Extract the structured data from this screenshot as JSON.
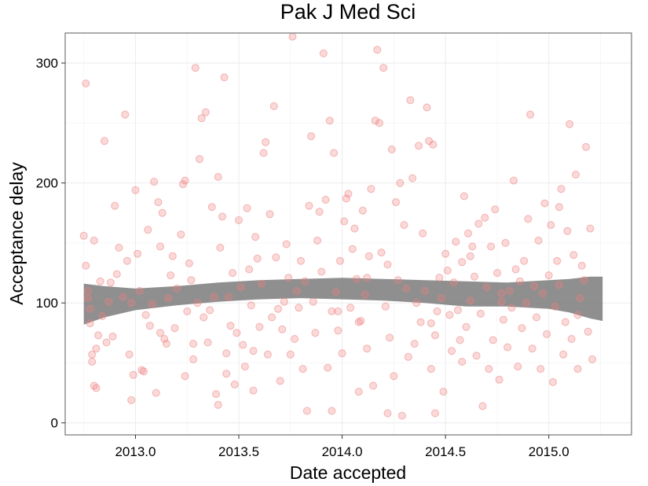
{
  "chart_data": {
    "type": "scatter",
    "title": "Pak J Med Sci",
    "xlabel": "Date accepted",
    "ylabel": "Acceptance delay",
    "xlim": [
      2012.66,
      2015.4
    ],
    "ylim": [
      -10,
      325
    ],
    "x_ticks": [
      "2013.0",
      "2013.5",
      "2014.0",
      "2014.5",
      "2015.0"
    ],
    "y_ticks": [
      "0",
      "100",
      "200",
      "300"
    ],
    "grid": true,
    "legend": "none",
    "point_color": "#f08080",
    "band_color": "#808080",
    "points": [
      [
        2012.75,
        156
      ],
      [
        2012.76,
        283
      ],
      [
        2012.76,
        131
      ],
      [
        2012.77,
        110
      ],
      [
        2012.77,
        104
      ],
      [
        2012.78,
        95
      ],
      [
        2012.78,
        83
      ],
      [
        2012.79,
        57
      ],
      [
        2012.79,
        51
      ],
      [
        2012.8,
        31
      ],
      [
        2012.8,
        152
      ],
      [
        2012.81,
        62
      ],
      [
        2012.81,
        29
      ],
      [
        2012.82,
        73
      ],
      [
        2012.83,
        118
      ],
      [
        2012.84,
        89
      ],
      [
        2012.85,
        235
      ],
      [
        2012.86,
        67
      ],
      [
        2012.87,
        101
      ],
      [
        2012.88,
        117
      ],
      [
        2012.89,
        72
      ],
      [
        2012.9,
        181
      ],
      [
        2012.91,
        124
      ],
      [
        2012.92,
        146
      ],
      [
        2012.94,
        105
      ],
      [
        2012.95,
        257
      ],
      [
        2012.96,
        135
      ],
      [
        2012.97,
        57
      ],
      [
        2012.98,
        19
      ],
      [
        2012.99,
        40
      ],
      [
        2013.0,
        194
      ],
      [
        2013.01,
        141
      ],
      [
        2013.02,
        110
      ],
      [
        2013.03,
        44
      ],
      [
        2013.04,
        43
      ],
      [
        2013.05,
        90
      ],
      [
        2013.06,
        161
      ],
      [
        2013.07,
        81
      ],
      [
        2013.08,
        99
      ],
      [
        2013.09,
        201
      ],
      [
        2013.1,
        25
      ],
      [
        2013.11,
        184
      ],
      [
        2013.12,
        147
      ],
      [
        2013.13,
        175
      ],
      [
        2013.14,
        70
      ],
      [
        2013.15,
        66
      ],
      [
        2013.16,
        104
      ],
      [
        2013.17,
        123
      ],
      [
        2013.18,
        139
      ],
      [
        2013.19,
        79
      ],
      [
        2013.2,
        112
      ],
      [
        2013.22,
        157
      ],
      [
        2013.23,
        199
      ],
      [
        2013.24,
        202
      ],
      [
        2013.24,
        39
      ],
      [
        2013.25,
        93
      ],
      [
        2013.26,
        133
      ],
      [
        2013.27,
        119
      ],
      [
        2013.28,
        53
      ],
      [
        2013.29,
        296
      ],
      [
        2013.3,
        100
      ],
      [
        2013.31,
        220
      ],
      [
        2013.32,
        254
      ],
      [
        2013.33,
        88
      ],
      [
        2013.34,
        259
      ],
      [
        2013.35,
        67
      ],
      [
        2013.36,
        94
      ],
      [
        2013.37,
        180
      ],
      [
        2013.38,
        105
      ],
      [
        2013.39,
        24
      ],
      [
        2013.4,
        205
      ],
      [
        2013.41,
        146
      ],
      [
        2013.42,
        172
      ],
      [
        2013.43,
        288
      ],
      [
        2013.44,
        58
      ],
      [
        2013.45,
        105
      ],
      [
        2013.46,
        81
      ],
      [
        2013.47,
        125
      ],
      [
        2013.48,
        32
      ],
      [
        2013.49,
        75
      ],
      [
        2013.5,
        169
      ],
      [
        2013.51,
        113
      ],
      [
        2013.52,
        65
      ],
      [
        2013.53,
        47
      ],
      [
        2013.54,
        179
      ],
      [
        2013.55,
        128
      ],
      [
        2013.56,
        98
      ],
      [
        2013.57,
        27
      ],
      [
        2013.58,
        155
      ],
      [
        2013.59,
        137
      ],
      [
        2013.6,
        80
      ],
      [
        2013.61,
        116
      ],
      [
        2013.62,
        225
      ],
      [
        2013.63,
        234
      ],
      [
        2013.64,
        57
      ],
      [
        2013.65,
        174
      ],
      [
        2013.66,
        88
      ],
      [
        2013.67,
        264
      ],
      [
        2013.68,
        138
      ],
      [
        2013.69,
        95
      ],
      [
        2013.7,
        35
      ],
      [
        2013.71,
        78
      ],
      [
        2013.72,
        101
      ],
      [
        2013.73,
        149
      ],
      [
        2013.74,
        121
      ],
      [
        2013.75,
        57
      ],
      [
        2013.76,
        322
      ],
      [
        2013.77,
        70
      ],
      [
        2013.78,
        110
      ],
      [
        2013.79,
        96
      ],
      [
        2013.8,
        135
      ],
      [
        2013.81,
        45
      ],
      [
        2013.82,
        118
      ],
      [
        2013.83,
        10
      ],
      [
        2013.84,
        181
      ],
      [
        2013.85,
        239
      ],
      [
        2013.86,
        101
      ],
      [
        2013.87,
        75
      ],
      [
        2013.88,
        152
      ],
      [
        2013.89,
        176
      ],
      [
        2013.9,
        126
      ],
      [
        2013.91,
        308
      ],
      [
        2013.92,
        186
      ],
      [
        2013.93,
        46
      ],
      [
        2013.94,
        252
      ],
      [
        2013.95,
        93
      ],
      [
        2013.96,
        225
      ],
      [
        2013.97,
        109
      ],
      [
        2013.98,
        77
      ],
      [
        2013.99,
        135
      ],
      [
        2014.0,
        58
      ],
      [
        2014.01,
        168
      ],
      [
        2014.02,
        187
      ],
      [
        2014.03,
        191
      ],
      [
        2014.04,
        96
      ],
      [
        2014.05,
        145
      ],
      [
        2014.06,
        162
      ],
      [
        2014.07,
        120
      ],
      [
        2014.08,
        26
      ],
      [
        2014.09,
        85
      ],
      [
        2014.1,
        177
      ],
      [
        2014.11,
        107
      ],
      [
        2014.12,
        62
      ],
      [
        2014.13,
        139
      ],
      [
        2014.14,
        195
      ],
      [
        2014.15,
        31
      ],
      [
        2014.16,
        252
      ],
      [
        2014.17,
        311
      ],
      [
        2014.18,
        250
      ],
      [
        2014.19,
        142
      ],
      [
        2014.2,
        296
      ],
      [
        2014.21,
        97
      ],
      [
        2014.22,
        132
      ],
      [
        2014.23,
        71
      ],
      [
        2014.24,
        228
      ],
      [
        2014.25,
        39
      ],
      [
        2014.26,
        184
      ],
      [
        2014.27,
        119
      ],
      [
        2014.28,
        200
      ],
      [
        2014.29,
        6
      ],
      [
        2014.3,
        165
      ],
      [
        2014.31,
        112
      ],
      [
        2014.32,
        55
      ],
      [
        2014.33,
        269
      ],
      [
        2014.34,
        204
      ],
      [
        2014.35,
        66
      ],
      [
        2014.36,
        100
      ],
      [
        2014.37,
        231
      ],
      [
        2014.38,
        84
      ],
      [
        2014.39,
        158
      ],
      [
        2014.4,
        110
      ],
      [
        2014.41,
        263
      ],
      [
        2014.42,
        235
      ],
      [
        2014.43,
        45
      ],
      [
        2014.44,
        232
      ],
      [
        2014.45,
        73
      ],
      [
        2014.46,
        93
      ],
      [
        2014.47,
        121
      ],
      [
        2014.48,
        104
      ],
      [
        2014.49,
        26
      ],
      [
        2014.5,
        141
      ],
      [
        2014.51,
        127
      ],
      [
        2014.52,
        90
      ],
      [
        2014.53,
        60
      ],
      [
        2014.54,
        117
      ],
      [
        2014.55,
        151
      ],
      [
        2014.56,
        94
      ],
      [
        2014.57,
        69
      ],
      [
        2014.58,
        134
      ],
      [
        2014.59,
        189
      ],
      [
        2014.6,
        80
      ],
      [
        2014.61,
        158
      ],
      [
        2014.62,
        102
      ],
      [
        2014.63,
        147
      ],
      [
        2014.64,
        122
      ],
      [
        2014.65,
        56
      ],
      [
        2014.66,
        166
      ],
      [
        2014.67,
        91
      ],
      [
        2014.68,
        14
      ],
      [
        2014.69,
        171
      ],
      [
        2014.7,
        113
      ],
      [
        2014.71,
        45
      ],
      [
        2014.72,
        147
      ],
      [
        2014.73,
        69
      ],
      [
        2014.74,
        178
      ],
      [
        2014.75,
        125
      ],
      [
        2014.76,
        36
      ],
      [
        2014.77,
        101
      ],
      [
        2014.78,
        86
      ],
      [
        2014.79,
        150
      ],
      [
        2014.8,
        63
      ],
      [
        2014.81,
        110
      ],
      [
        2014.82,
        96
      ],
      [
        2014.83,
        202
      ],
      [
        2014.84,
        128
      ],
      [
        2014.85,
        47
      ],
      [
        2014.86,
        118
      ],
      [
        2014.87,
        79
      ],
      [
        2014.88,
        135
      ],
      [
        2014.89,
        100
      ],
      [
        2014.9,
        170
      ],
      [
        2014.91,
        257
      ],
      [
        2014.92,
        62
      ],
      [
        2014.93,
        114
      ],
      [
        2014.94,
        88
      ],
      [
        2014.95,
        152
      ],
      [
        2014.96,
        45
      ],
      [
        2014.97,
        108
      ],
      [
        2014.98,
        183
      ],
      [
        2014.99,
        74
      ],
      [
        2015.0,
        123
      ],
      [
        2015.01,
        165
      ],
      [
        2015.02,
        34
      ],
      [
        2015.03,
        97
      ],
      [
        2015.04,
        135
      ],
      [
        2015.05,
        115
      ],
      [
        2015.06,
        195
      ],
      [
        2015.07,
        57
      ],
      [
        2015.08,
        84
      ],
      [
        2015.09,
        160
      ],
      [
        2015.1,
        249
      ],
      [
        2015.11,
        70
      ],
      [
        2015.12,
        140
      ],
      [
        2015.13,
        207
      ],
      [
        2015.14,
        45
      ],
      [
        2015.15,
        104
      ],
      [
        2015.16,
        131
      ],
      [
        2015.17,
        119
      ],
      [
        2015.18,
        230
      ],
      [
        2015.19,
        76
      ],
      [
        2015.2,
        162
      ],
      [
        2015.21,
        53
      ],
      [
        2015.05,
        180
      ],
      [
        2015.14,
        90
      ],
      [
        2013.12,
        75
      ],
      [
        2013.98,
        93
      ],
      [
        2014.43,
        83
      ],
      [
        2012.98,
        100
      ],
      [
        2013.57,
        60
      ],
      [
        2014.12,
        121
      ],
      [
        2013.4,
        15
      ],
      [
        2013.44,
        41
      ],
      [
        2014.22,
        8
      ],
      [
        2014.45,
        8
      ],
      [
        2013.95,
        10
      ],
      [
        2014.62,
        139
      ],
      [
        2014.08,
        84
      ],
      [
        2013.28,
        66
      ],
      [
        2014.58,
        51
      ],
      [
        2014.77,
        108
      ]
    ],
    "smooth_band": [
      [
        2012.75,
        82,
        116
      ],
      [
        2012.85,
        88,
        114
      ],
      [
        2013.0,
        94,
        112
      ],
      [
        2013.2,
        98,
        114
      ],
      [
        2013.4,
        101,
        117
      ],
      [
        2013.6,
        103,
        119
      ],
      [
        2013.8,
        104,
        120
      ],
      [
        2014.0,
        103,
        121
      ],
      [
        2014.2,
        102,
        120
      ],
      [
        2014.4,
        100,
        119
      ],
      [
        2014.6,
        97,
        118
      ],
      [
        2014.8,
        97,
        117
      ],
      [
        2015.0,
        95,
        119
      ],
      [
        2015.1,
        92,
        120
      ],
      [
        2015.2,
        87,
        122
      ],
      [
        2015.26,
        85,
        122
      ]
    ]
  }
}
